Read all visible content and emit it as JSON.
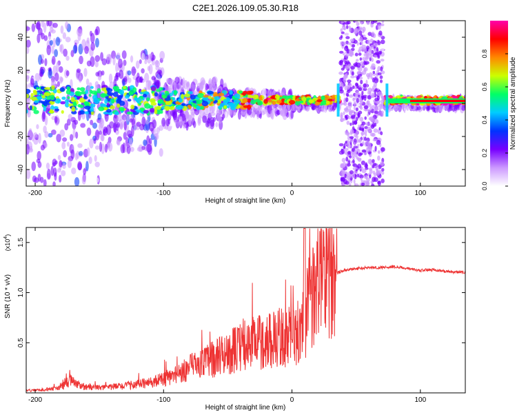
{
  "title": "C2E1.2026.109.05.30.R18",
  "chart_data": [
    {
      "type": "heatmap",
      "title": "C2E1.2026.109.05.30.R18",
      "xlabel": "Height of straight line (km)",
      "ylabel": "Frequency (Hz)",
      "xlim": [
        -207,
        135
      ],
      "ylim": [
        -50,
        50
      ],
      "x_ticks": [
        -200,
        -100,
        0,
        100
      ],
      "x_tick_labels": [
        "-200",
        "-100",
        "0",
        "100"
      ],
      "y_ticks": [
        -40,
        -20,
        0,
        20,
        40
      ],
      "y_tick_labels": [
        "-40",
        "-20",
        "0",
        "20",
        "40"
      ],
      "gap_region_x": [
        37,
        72
      ],
      "colorbar": {
        "label": "Normalized spectral amplitude",
        "range": [
          0,
          1
        ],
        "ticks": [
          0.0,
          0.2,
          0.4,
          0.6,
          0.8
        ],
        "tick_labels": [
          "0.0",
          "0.2",
          "0.4",
          "0.6",
          "0.8"
        ],
        "colors": [
          "#ffffff",
          "#cc99ff",
          "#7700ff",
          "#0033ff",
          "#00ccff",
          "#00ff66",
          "#ccff00",
          "#ff8800",
          "#ff0000",
          "#ff00aa"
        ]
      }
    },
    {
      "type": "line",
      "xlabel": "Height of straight line (km)",
      "ylabel": "SNR (10 * v/v)",
      "y_multiplier_label": "(x10",
      "y_multiplier_exp": "4",
      "y_multiplier_close": ")",
      "xlim": [
        -207,
        135
      ],
      "ylim": [
        0,
        1.65
      ],
      "x_ticks": [
        -200,
        -100,
        0,
        100
      ],
      "x_tick_labels": [
        "-200",
        "-100",
        "0",
        "100"
      ],
      "y_ticks": [
        0.5,
        1.0,
        1.5
      ],
      "y_tick_labels": [
        "0.5",
        "1.0",
        "1.5"
      ],
      "series": [
        {
          "name": "SNR",
          "color": "#ee3333",
          "x": [
            -207,
            -195,
            -185,
            -178,
            -172,
            -168,
            -162,
            -150,
            -140,
            -130,
            -120,
            -110,
            -100,
            -90,
            -80,
            -70,
            -60,
            -50,
            -40,
            -30,
            -20,
            -10,
            0,
            5,
            10,
            15,
            20,
            25,
            30,
            35,
            40,
            50,
            60,
            70,
            80,
            90,
            100,
            110,
            120,
            135
          ],
          "values": [
            0.02,
            0.03,
            0.04,
            0.08,
            0.14,
            0.08,
            0.06,
            0.05,
            0.06,
            0.07,
            0.09,
            0.1,
            0.14,
            0.18,
            0.25,
            0.3,
            0.34,
            0.4,
            0.45,
            0.5,
            0.52,
            0.55,
            0.56,
            0.6,
            0.75,
            0.95,
            1.1,
            1.15,
            1.18,
            1.2,
            1.22,
            1.24,
            1.25,
            1.25,
            1.26,
            1.24,
            1.22,
            1.23,
            1.21,
            1.2
          ]
        }
      ]
    }
  ]
}
